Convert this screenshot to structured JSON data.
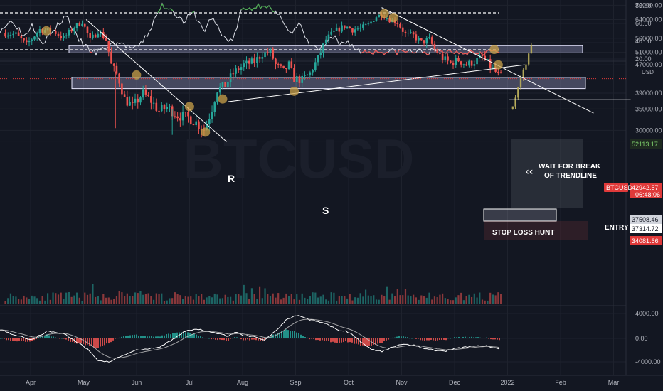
{
  "colors": {
    "background": "#131722",
    "grid": "#1e222d",
    "up": "#26a69a",
    "down": "#ef5350",
    "zone_fill": "#c8c8ff",
    "marker": "#c9a24a",
    "rsi_line": "#e0e3eb"
  },
  "chart_data": [
    {
      "type": "line",
      "panel": "rsi",
      "y_ticks": [
        "80.00",
        "60.00",
        "40.00",
        "20.00"
      ],
      "ylim": [
        20,
        80
      ],
      "levels": [
        70,
        30
      ],
      "months_x": [
        0,
        1,
        2,
        3,
        4,
        5,
        6,
        7,
        8,
        9,
        10,
        11,
        12,
        13
      ],
      "anchors": [
        [
          0.0,
          52
        ],
        [
          0.5,
          62
        ],
        [
          0.9,
          44
        ],
        [
          1.2,
          58
        ],
        [
          1.6,
          38
        ],
        [
          1.9,
          46
        ],
        [
          2.2,
          57
        ],
        [
          2.5,
          68
        ],
        [
          2.9,
          43
        ],
        [
          3.3,
          32
        ],
        [
          3.6,
          26
        ],
        [
          4.0,
          33
        ],
        [
          4.4,
          38
        ],
        [
          4.8,
          34
        ],
        [
          5.1,
          30
        ],
        [
          5.3,
          36
        ],
        [
          5.6,
          48
        ],
        [
          5.9,
          66
        ],
        [
          6.1,
          78
        ],
        [
          6.5,
          74
        ],
        [
          6.9,
          60
        ],
        [
          7.3,
          70
        ],
        [
          7.7,
          50
        ],
        [
          8.0,
          66
        ],
        [
          8.4,
          44
        ],
        [
          8.8,
          40
        ],
        [
          9.1,
          72
        ],
        [
          9.6,
          76
        ],
        [
          10.0,
          80
        ],
        [
          10.3,
          71
        ],
        [
          10.7,
          62
        ],
        [
          11.0,
          47
        ],
        [
          11.3,
          58
        ],
        [
          11.6,
          38
        ],
        [
          12.0,
          30
        ],
        [
          12.3,
          36
        ],
        [
          12.6,
          44
        ],
        [
          12.8,
          35
        ],
        [
          12.95,
          38
        ],
        [
          13.1,
          40
        ],
        [
          13.3,
          34
        ],
        [
          13.55,
          28
        ]
      ]
    },
    {
      "type": "candlestick",
      "panel": "price",
      "symbol": "BTCUSD",
      "currency": "USD",
      "x_labels": [
        "Apr",
        "May",
        "Jun",
        "Jul",
        "Aug",
        "Sep",
        "Oct",
        "Nov",
        "Dec",
        "2022",
        "Feb",
        "Mar"
      ],
      "y_ticks": [
        "72000.00",
        "64000.00",
        "56000.00",
        "51000.00",
        "47000.00",
        "39000.00",
        "35000.00",
        "30000.00",
        "27600.00"
      ],
      "ylim": [
        25000,
        72000
      ],
      "anchors": [
        [
          0.0,
          58000
        ],
        [
          0.4,
          57500
        ],
        [
          0.8,
          53500
        ],
        [
          1.3,
          59500
        ],
        [
          1.8,
          59000
        ],
        [
          2.2,
          56000
        ],
        [
          2.6,
          60500
        ],
        [
          2.9,
          63000
        ],
        [
          3.2,
          55000
        ],
        [
          3.5,
          59000
        ],
        [
          3.8,
          55500
        ],
        [
          4.0,
          47000
        ],
        [
          4.25,
          43500
        ],
        [
          4.5,
          37500
        ],
        [
          4.8,
          35500
        ],
        [
          5.2,
          39000
        ],
        [
          5.5,
          37000
        ],
        [
          5.8,
          34500
        ],
        [
          6.1,
          35500
        ],
        [
          6.5,
          33500
        ],
        [
          6.9,
          33000
        ],
        [
          7.2,
          31800
        ],
        [
          7.5,
          30300
        ],
        [
          7.75,
          34000
        ],
        [
          8.0,
          40000
        ],
        [
          8.3,
          41000
        ],
        [
          8.6,
          44500
        ],
        [
          9.0,
          47000
        ],
        [
          9.4,
          48000
        ],
        [
          9.7,
          50500
        ],
        [
          10.0,
          51200
        ],
        [
          10.2,
          47000
        ],
        [
          10.5,
          45000
        ],
        [
          10.7,
          47000
        ],
        [
          10.9,
          43000
        ],
        [
          11.2,
          42500
        ],
        [
          11.5,
          44500
        ],
        [
          11.8,
          49000
        ],
        [
          12.1,
          55500
        ],
        [
          12.4,
          58500
        ],
        [
          12.8,
          61000
        ],
        [
          13.1,
          59500
        ],
        [
          13.4,
          60000
        ],
        [
          13.7,
          61500
        ],
        [
          14.0,
          65500
        ],
        [
          14.2,
          66500
        ],
        [
          14.5,
          64000
        ],
        [
          14.8,
          62500
        ],
        [
          15.1,
          57500
        ],
        [
          15.4,
          57000
        ],
        [
          15.7,
          54500
        ],
        [
          16.0,
          55500
        ],
        [
          16.2,
          52000
        ],
        [
          16.5,
          49000
        ],
        [
          16.8,
          47500
        ],
        [
          17.1,
          48500
        ],
        [
          17.4,
          47000
        ],
        [
          17.7,
          48000
        ],
        [
          18.0,
          49500
        ],
        [
          18.3,
          46500
        ],
        [
          18.6,
          44000
        ],
        [
          18.75,
          42943
        ]
      ],
      "seed": 7
    },
    {
      "type": "bar",
      "panel": "volume",
      "seed": 11
    },
    {
      "type": "histogram",
      "panel": "macd",
      "y_ticks": [
        "4000.00",
        "0.00",
        "-4000.00"
      ],
      "ylim": [
        -5000,
        5000
      ],
      "macd_anchors": [
        [
          0.0,
          1500
        ],
        [
          0.6,
          500
        ],
        [
          1.2,
          -200
        ],
        [
          1.8,
          1200
        ],
        [
          2.4,
          800
        ],
        [
          2.9,
          -600
        ],
        [
          3.3,
          -1800
        ],
        [
          3.7,
          -3600
        ],
        [
          4.1,
          -3900
        ],
        [
          4.6,
          -2900
        ],
        [
          5.1,
          -2000
        ],
        [
          5.5,
          -1800
        ],
        [
          6.0,
          -1500
        ],
        [
          6.4,
          -500
        ],
        [
          6.9,
          1000
        ],
        [
          7.3,
          1500
        ],
        [
          7.8,
          1300
        ],
        [
          8.2,
          800
        ],
        [
          8.6,
          400
        ],
        [
          8.9,
          1000
        ],
        [
          9.2,
          500
        ],
        [
          9.6,
          300
        ],
        [
          10.0,
          -200
        ],
        [
          10.4,
          1200
        ],
        [
          10.8,
          3000
        ],
        [
          11.2,
          3800
        ],
        [
          11.6,
          3200
        ],
        [
          12.0,
          2800
        ],
        [
          12.4,
          2200
        ],
        [
          12.8,
          1400
        ],
        [
          13.2,
          1000
        ],
        [
          13.6,
          -500
        ],
        [
          14.0,
          -1800
        ],
        [
          14.4,
          -2200
        ],
        [
          14.8,
          -1400
        ],
        [
          15.2,
          -900
        ],
        [
          15.6,
          -1100
        ],
        [
          16.0,
          -1600
        ],
        [
          16.4,
          -2000
        ],
        [
          16.8,
          -2100
        ],
        [
          17.2,
          -1600
        ],
        [
          17.6,
          -1400
        ],
        [
          18.0,
          -1200
        ],
        [
          18.4,
          -1300
        ],
        [
          18.75,
          -1700
        ]
      ],
      "seed": 5
    }
  ],
  "price_tags": [
    {
      "value": 52113.17,
      "label": "52113.17",
      "fg": "#7fd16c",
      "bg": "#1e2a20"
    },
    {
      "value": 42942.57,
      "label": "42942.57",
      "sub": "06:48:06",
      "fg": "#ffffff",
      "bg": "#e03a3a",
      "symbol": "BTCUSD"
    },
    {
      "value": 37508.46,
      "label": "37508.46",
      "fg": "#131722",
      "bg": "#d1d4dc"
    },
    {
      "value": 37314.72,
      "label": "37314.72",
      "fg": "#131722",
      "bg": "#ffffff"
    },
    {
      "value": 34081.66,
      "label": "34081.66",
      "fg": "#ffffff",
      "bg": "#e03a3a"
    }
  ],
  "annotations": {
    "r_label": "R",
    "s_label": "S",
    "wait_line1": "WAIT FOR BREAK",
    "wait_line2": "OF TRENDLINE",
    "stop_loss": "STOP LOSS HUNT",
    "entry": "ENTRY",
    "arrow": "‹‹",
    "watermark": "BTCUSD"
  },
  "zones": [
    {
      "from": 50800,
      "to": 53300
    },
    {
      "from": 40200,
      "to": 43300
    }
  ],
  "markers_months": [
    [
      1.55,
      59000
    ],
    [
      4.95,
      44000
    ],
    [
      6.95,
      35600
    ],
    [
      7.55,
      29600
    ],
    [
      8.2,
      37500
    ],
    [
      10.9,
      39500
    ],
    [
      14.3,
      67000
    ],
    [
      14.65,
      65000
    ],
    [
      18.45,
      52000
    ],
    [
      18.6,
      47000
    ]
  ]
}
